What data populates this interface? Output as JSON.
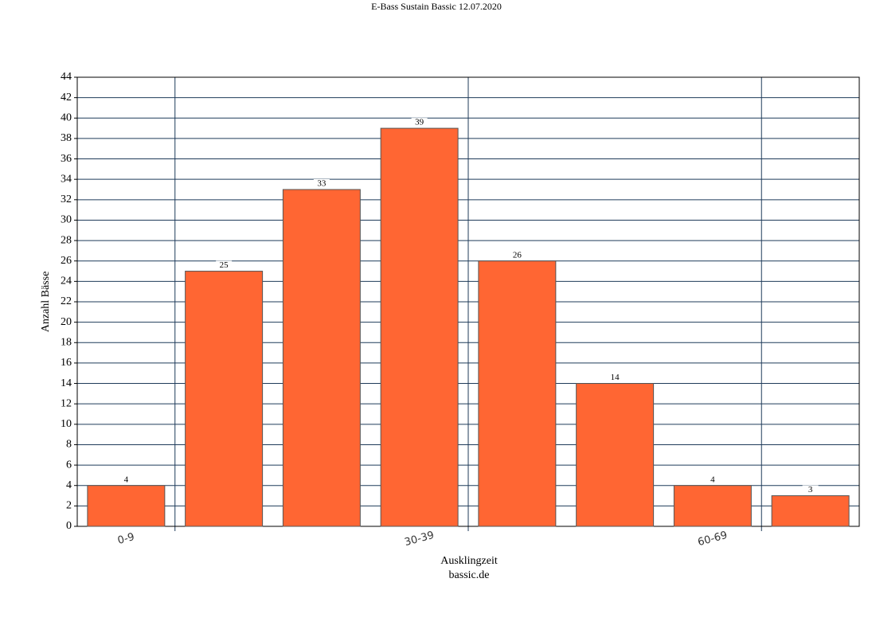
{
  "chart_data": {
    "type": "bar",
    "title": "E-Bass Sustain Bassic 12.07.2020",
    "subtitle": "bassic.de",
    "x_label": "Ausklingzeit",
    "y_label": "Anzahl Bässe",
    "categories": [
      "0-9",
      null,
      null,
      "30-39",
      null,
      null,
      "60-69",
      null
    ],
    "values": [
      4,
      25,
      33,
      39,
      26,
      14,
      4,
      3
    ],
    "color": "#ff6633",
    "ylim": [
      0,
      44
    ],
    "yticks": [
      0,
      2,
      4,
      6,
      8,
      10,
      12,
      14,
      16,
      18,
      20,
      22,
      24,
      26,
      28,
      30,
      32,
      34,
      36,
      38,
      40,
      42,
      44
    ],
    "grid": true
  }
}
